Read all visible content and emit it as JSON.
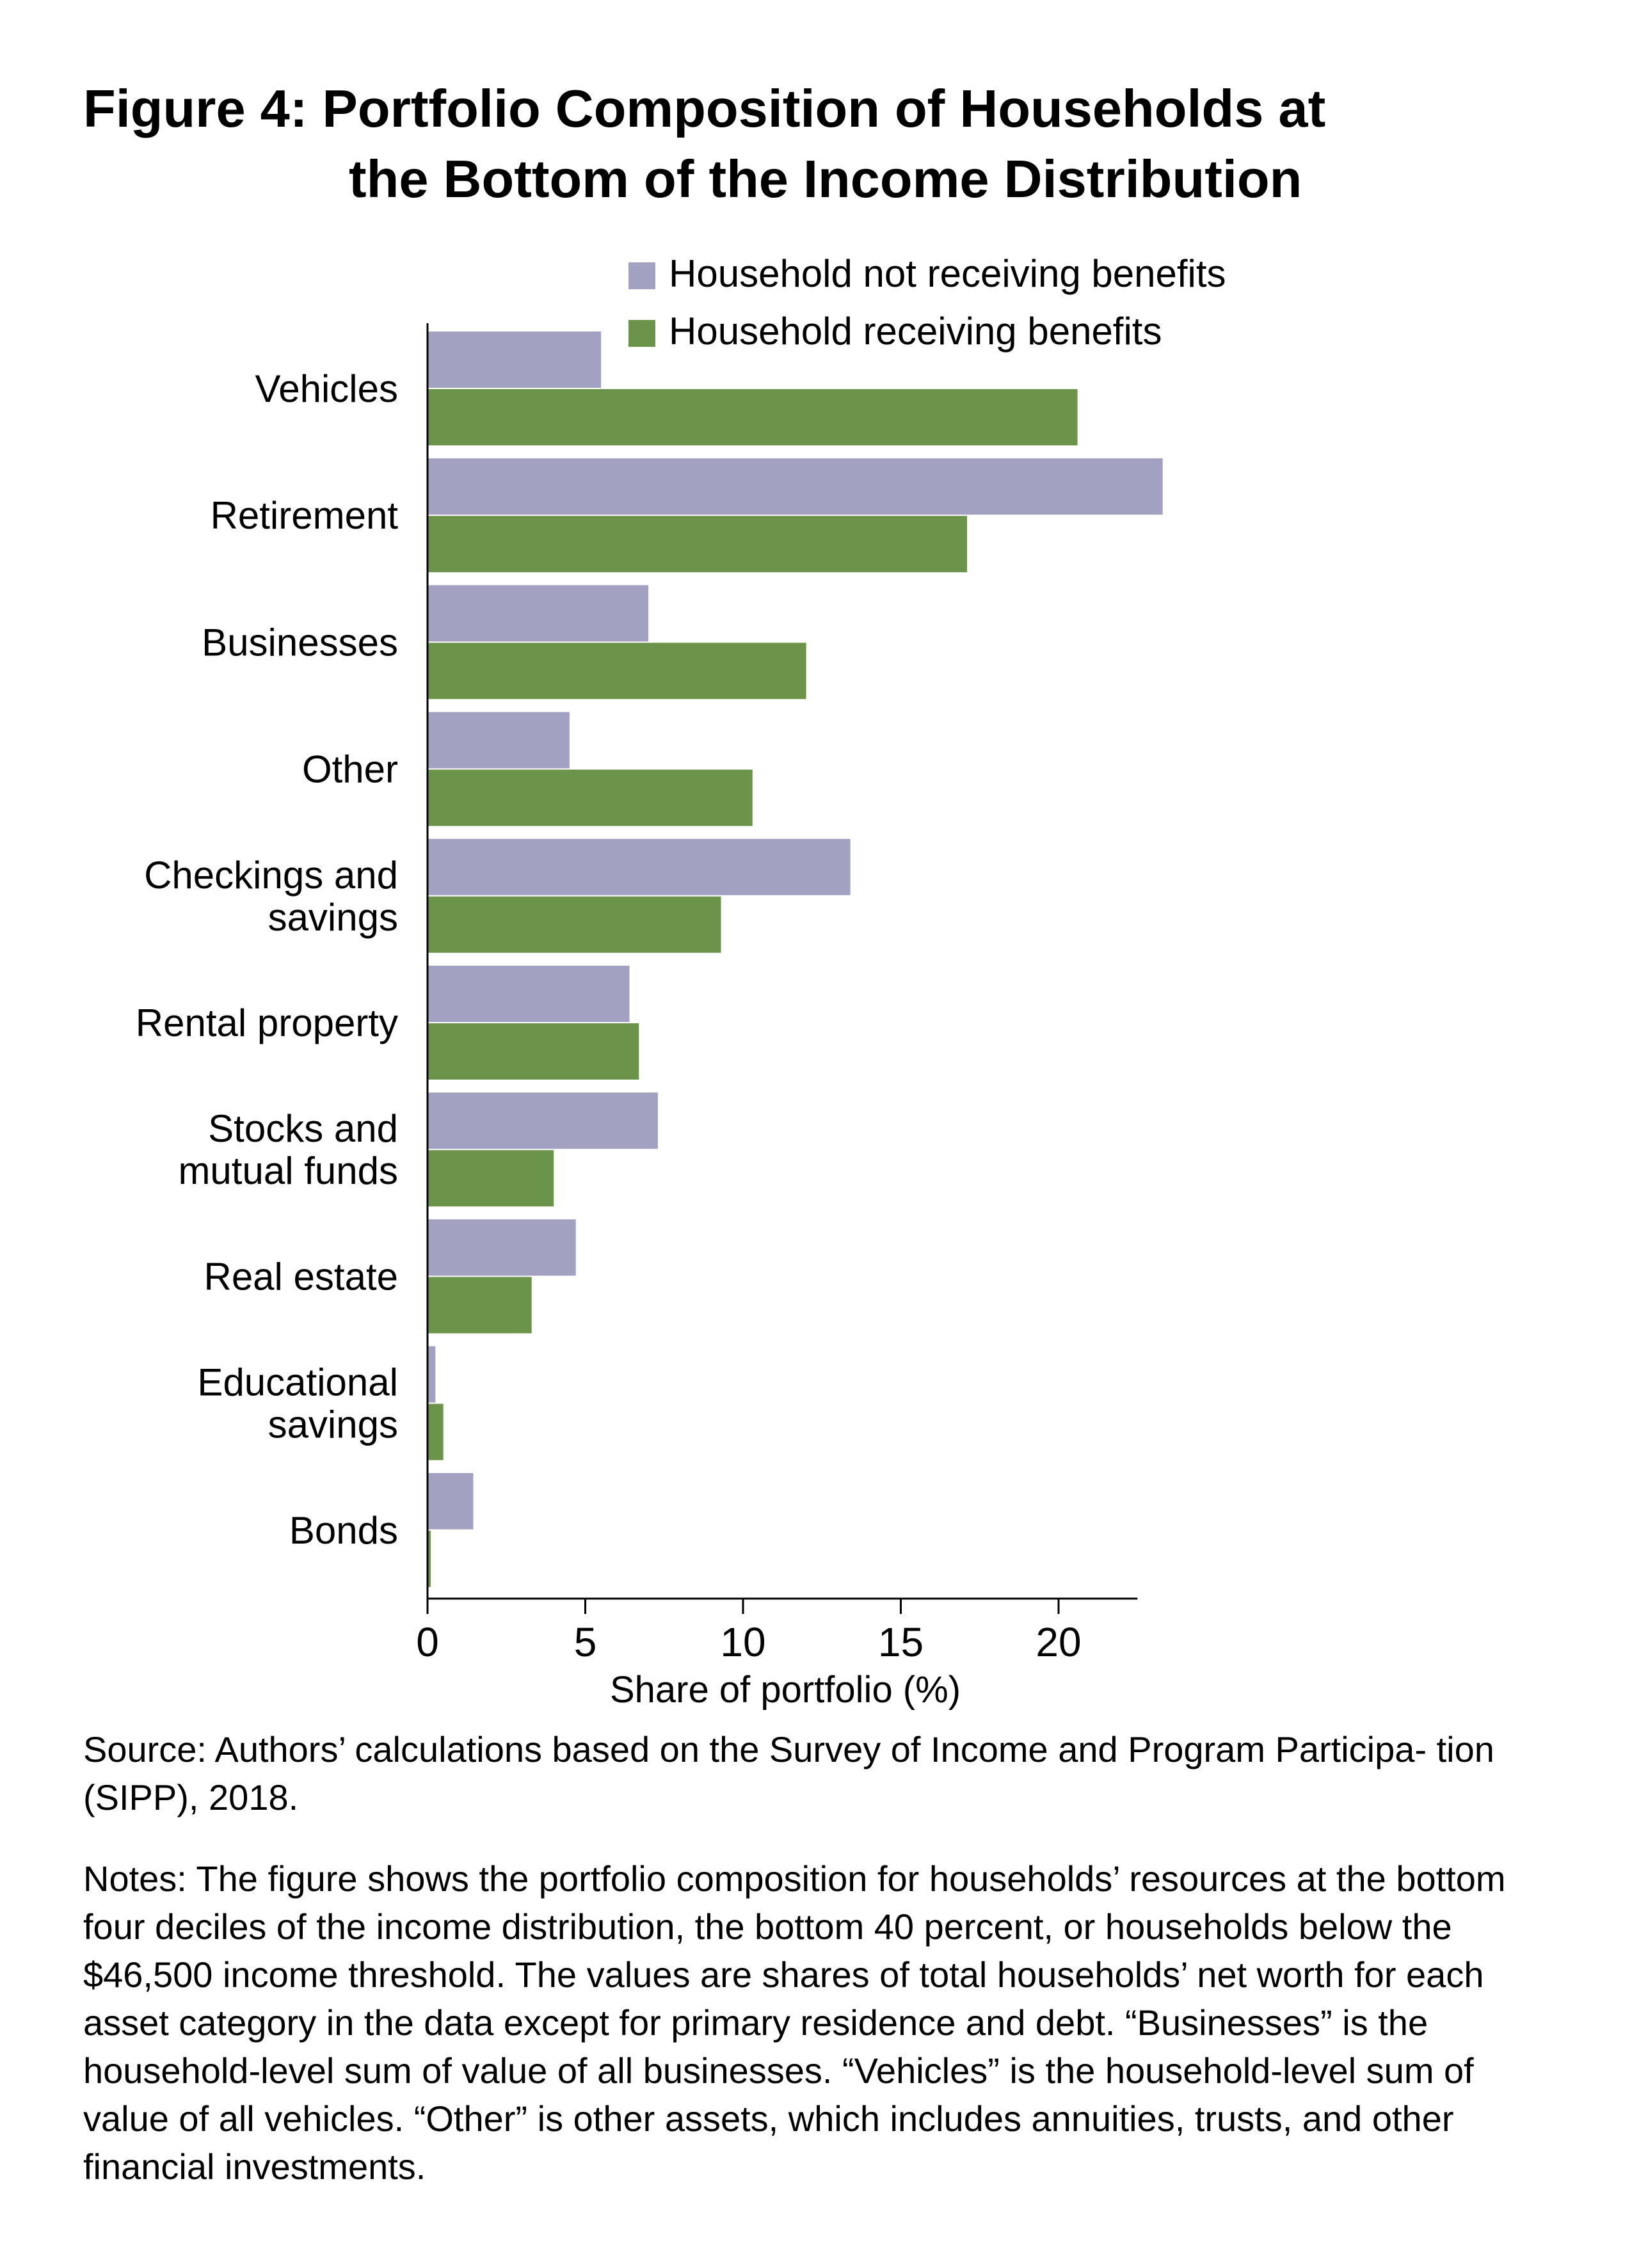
{
  "title_line1": "Figure 4: Portfolio Composition of Households at",
  "title_line2": "the Bottom of the Income Distribution",
  "chart_data": {
    "type": "bar",
    "orientation": "horizontal",
    "categories": [
      [
        "Vehicles"
      ],
      [
        "Retirement"
      ],
      [
        "Businesses"
      ],
      [
        "Other"
      ],
      [
        "Checkings and",
        "savings"
      ],
      [
        "Rental property"
      ],
      [
        "Stocks and",
        "mutual funds"
      ],
      [
        "Real estate"
      ],
      [
        "Educational",
        "savings"
      ],
      [
        "Bonds"
      ]
    ],
    "series": [
      {
        "name": "Household not receiving benefits",
        "color": "#a2a1c1",
        "values": [
          5.5,
          23.3,
          7.0,
          4.5,
          13.4,
          6.4,
          7.3,
          4.7,
          0.25,
          1.45
        ]
      },
      {
        "name": "Household receiving benefits",
        "color": "#6b944a",
        "values": [
          20.6,
          17.1,
          12.0,
          10.3,
          9.3,
          6.7,
          4.0,
          3.3,
          0.5,
          0.1
        ]
      }
    ],
    "xlabel": "Share of portfolio (%)",
    "ylabel": "",
    "xlim": [
      0,
      22.5
    ],
    "xticks": [
      "0",
      "5",
      "10",
      "15",
      "20"
    ],
    "grid": false,
    "legend_position": "top-right"
  },
  "source_text": "Source: Authors’ calculations based on the Survey of Income and Program Participa- tion (SIPP), 2018.",
  "notes_text": "Notes: The figure shows the portfolio composition for households’ resources at the bottom four deciles of the income distribution, the bottom 40 percent, or households below the $46,500 income threshold. The values are shares of total households’ net worth for each asset category in the data except for primary residence and debt. “Businesses” is the household-level sum of value of all businesses. “Vehicles” is the household-level sum of value of all vehicles. “Other” is other assets, which includes annuities, trusts, and other financial investments."
}
